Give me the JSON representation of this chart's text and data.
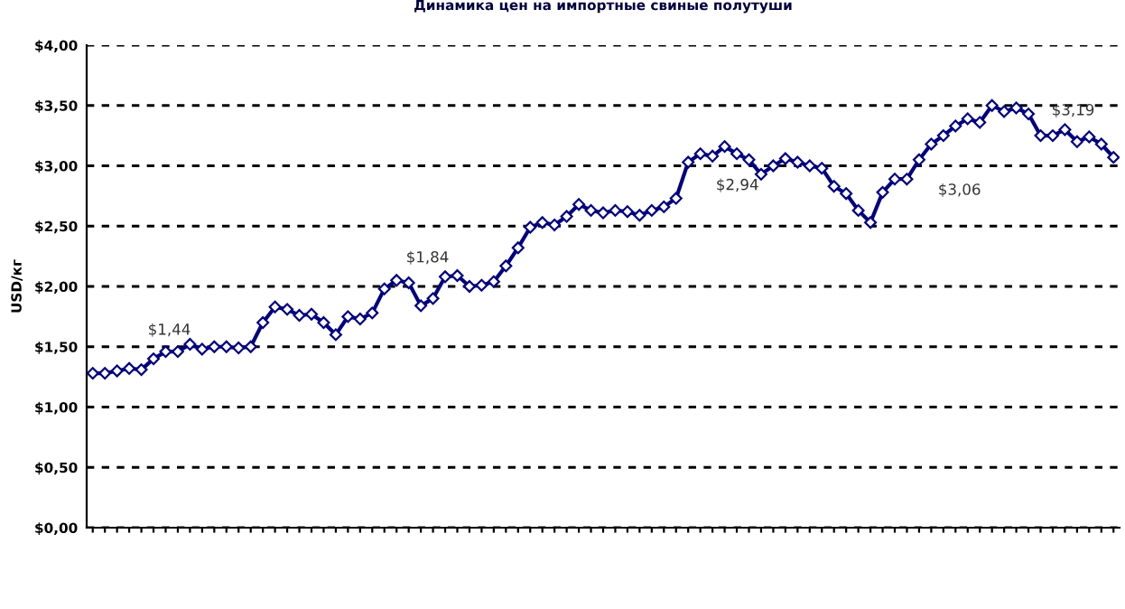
{
  "chart_data": {
    "type": "line",
    "title": "Динамика цен на импортные свиные полутуши",
    "ylabel": "USD/кг",
    "categories": [
      null,
      null,
      null,
      null,
      null,
      null,
      null,
      null,
      null,
      null,
      null,
      null,
      null,
      null,
      null,
      null,
      null,
      null,
      null,
      null,
      null,
      null,
      null,
      null,
      null,
      null,
      null,
      null,
      null,
      null,
      null,
      null,
      null,
      null,
      null,
      null,
      null,
      null,
      null,
      null,
      null,
      null,
      null,
      null,
      null,
      null,
      null,
      null,
      null,
      null,
      null,
      null,
      null,
      null,
      null,
      null,
      null,
      null,
      null,
      null,
      null,
      null,
      null,
      null,
      null,
      null,
      null,
      null,
      null,
      null,
      null,
      null,
      null,
      null,
      null,
      null,
      null,
      null,
      null,
      null,
      null,
      null,
      null,
      null,
      null
    ],
    "series": [
      {
        "color": "#000080",
        "values": [
          1.28,
          1.28,
          1.3,
          1.32,
          1.31,
          1.4,
          1.46,
          1.46,
          1.52,
          1.48,
          1.5,
          1.5,
          1.49,
          1.5,
          1.7,
          1.83,
          1.81,
          1.76,
          1.77,
          1.7,
          1.6,
          1.75,
          1.73,
          1.78,
          1.98,
          2.05,
          2.03,
          1.84,
          1.9,
          2.08,
          2.09,
          2.0,
          2.01,
          2.04,
          2.17,
          2.32,
          2.49,
          2.53,
          2.51,
          2.58,
          2.68,
          2.63,
          2.61,
          2.63,
          2.62,
          2.59,
          2.63,
          2.66,
          2.73,
          3.03,
          3.1,
          3.08,
          3.16,
          3.1,
          3.05,
          2.93,
          3.0,
          3.06,
          3.03,
          3.0,
          2.98,
          2.83,
          2.77,
          2.63,
          2.53,
          2.78,
          2.89,
          2.89,
          3.05,
          3.18,
          3.25,
          3.33,
          3.39,
          3.36,
          3.5,
          3.45,
          3.48,
          3.43,
          3.25,
          3.25,
          3.3,
          3.2,
          3.24,
          3.18,
          3.07
        ]
      }
    ],
    "ylim": [
      0,
      4
    ],
    "yticks": [
      {
        "value": 0,
        "label": "$0,00"
      },
      {
        "value": 0.5,
        "label": "$0,50"
      },
      {
        "value": 1,
        "label": "$1,00"
      },
      {
        "value": 1.5,
        "label": "$1,50"
      },
      {
        "value": 2,
        "label": "$2,00"
      },
      {
        "value": 2.5,
        "label": "$2,50"
      },
      {
        "value": 3,
        "label": "$3,00"
      },
      {
        "value": 3.5,
        "label": "$3,50"
      },
      {
        "value": 4,
        "label": "$4,00"
      }
    ],
    "grid": "y",
    "marker": "diamond",
    "line_style": "solid",
    "tick_labels": "y",
    "annotations": [
      "$1,44",
      "$1,84",
      "$2,94",
      "$3,06",
      "$3,19"
    ]
  }
}
